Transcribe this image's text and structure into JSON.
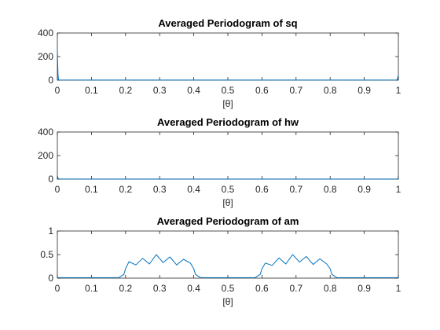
{
  "colors": {
    "series": "#0072bd",
    "axis": "#262626",
    "background": "#ffffff"
  },
  "chart_data": [
    {
      "type": "line",
      "title": "Averaged Periodogram of sq",
      "xlabel": "[θ]",
      "ylabel": "",
      "xlim": [
        0,
        1
      ],
      "ylim": [
        0,
        400
      ],
      "xticks": [
        "0",
        "0.1",
        "0.2",
        "0.3",
        "0.4",
        "0.5",
        "0.6",
        "0.7",
        "0.8",
        "0.9",
        "1"
      ],
      "yticks": [
        "0",
        "200",
        "400"
      ],
      "grid": false,
      "series": [
        {
          "x": [
            0,
            0.002,
            0.004,
            0.1,
            0.2,
            0.3,
            0.4,
            0.5,
            0.6,
            0.7,
            0.8,
            0.9,
            0.996,
            0.998,
            1
          ],
          "values": [
            255,
            40,
            2,
            1,
            1,
            1,
            1,
            1,
            1,
            1,
            1,
            1,
            2,
            20,
            40
          ]
        }
      ]
    },
    {
      "type": "line",
      "title": "Averaged Periodogram of hw",
      "xlabel": "[θ]",
      "ylabel": "",
      "xlim": [
        0,
        1
      ],
      "ylim": [
        0,
        400
      ],
      "xticks": [
        "0",
        "0.1",
        "0.2",
        "0.3",
        "0.4",
        "0.5",
        "0.6",
        "0.7",
        "0.8",
        "0.9",
        "1"
      ],
      "yticks": [
        "0",
        "200",
        "400"
      ],
      "grid": false,
      "series": [
        {
          "x": [
            0,
            0.002,
            0.004,
            0.1,
            0.2,
            0.3,
            0.4,
            0.5,
            0.6,
            0.7,
            0.8,
            0.9,
            0.996,
            0.998,
            1
          ],
          "values": [
            30,
            8,
            2,
            1,
            1,
            1,
            1,
            1,
            1,
            1,
            1,
            1,
            1,
            3,
            6
          ]
        }
      ]
    },
    {
      "type": "line",
      "title": "Averaged Periodogram of am",
      "xlabel": "[θ]",
      "ylabel": "",
      "xlim": [
        0,
        1
      ],
      "ylim": [
        0,
        1
      ],
      "xticks": [
        "0",
        "0.1",
        "0.2",
        "0.3",
        "0.4",
        "0.5",
        "0.6",
        "0.7",
        "0.8",
        "0.9",
        "1"
      ],
      "yticks": [
        "0",
        "0.5",
        "1"
      ],
      "grid": false,
      "series": [
        {
          "x": [
            0,
            0.1,
            0.18,
            0.195,
            0.2,
            0.21,
            0.23,
            0.25,
            0.27,
            0.29,
            0.31,
            0.33,
            0.35,
            0.37,
            0.39,
            0.4,
            0.405,
            0.42,
            0.5,
            0.58,
            0.595,
            0.6,
            0.61,
            0.63,
            0.65,
            0.67,
            0.69,
            0.71,
            0.73,
            0.75,
            0.77,
            0.79,
            0.8,
            0.805,
            0.82,
            0.9,
            1
          ],
          "values": [
            0.01,
            0.01,
            0.01,
            0.08,
            0.2,
            0.35,
            0.28,
            0.42,
            0.3,
            0.5,
            0.33,
            0.45,
            0.28,
            0.4,
            0.32,
            0.2,
            0.08,
            0.01,
            0.01,
            0.01,
            0.08,
            0.2,
            0.32,
            0.27,
            0.43,
            0.3,
            0.5,
            0.34,
            0.46,
            0.29,
            0.41,
            0.3,
            0.2,
            0.08,
            0.01,
            0.01,
            0.01
          ]
        }
      ]
    }
  ]
}
